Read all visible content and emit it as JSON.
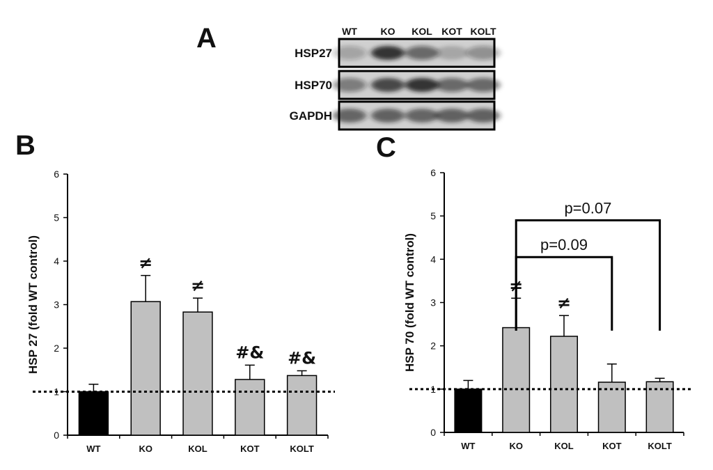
{
  "figure": {
    "panel_a": {
      "letter": "A",
      "lanes": [
        "WT",
        "KO",
        "KOL",
        "KOT",
        "KOLT"
      ],
      "blots": [
        {
          "label": "HSP27",
          "intensity": [
            0.25,
            0.85,
            0.55,
            0.2,
            0.35
          ]
        },
        {
          "label": "HSP70",
          "intensity": [
            0.45,
            0.75,
            0.85,
            0.55,
            0.55
          ]
        },
        {
          "label": "GAPDH",
          "intensity": [
            0.6,
            0.62,
            0.6,
            0.62,
            0.62
          ]
        }
      ],
      "colors": {
        "band": "#1a1a1a",
        "background": "#d0d0d0"
      }
    }
  },
  "chart_data": [
    {
      "type": "bar",
      "panel": "B",
      "title": "",
      "xlabel": "",
      "ylabel": "HSP 27 (fold WT control)",
      "ylim": [
        0,
        6
      ],
      "yticks": [
        "0",
        "1",
        "2",
        "3",
        "4",
        "5",
        "6"
      ],
      "categories": [
        "WT",
        "KO",
        "KOL",
        "KOT",
        "KOLT"
      ],
      "values": [
        1.0,
        3.07,
        2.83,
        1.28,
        1.37
      ],
      "errors": [
        0.17,
        0.6,
        0.32,
        0.33,
        0.11
      ],
      "annotations": [
        "",
        "≠",
        "≠",
        "#&",
        "#&"
      ],
      "bar_colors": [
        "#000000",
        "#c0c0c0",
        "#c0c0c0",
        "#c0c0c0",
        "#c0c0c0"
      ],
      "reference_line": 1,
      "grid": false,
      "brackets": []
    },
    {
      "type": "bar",
      "panel": "C",
      "title": "",
      "xlabel": "",
      "ylabel": "HSP 70 (fold WT control)",
      "ylim": [
        0,
        6
      ],
      "yticks": [
        "0",
        "1",
        "2",
        "3",
        "4",
        "5",
        "6"
      ],
      "categories": [
        "WT",
        "KO",
        "KOL",
        "KOT",
        "KOLT"
      ],
      "values": [
        1.0,
        2.42,
        2.22,
        1.16,
        1.17
      ],
      "errors": [
        0.2,
        0.68,
        0.48,
        0.42,
        0.08
      ],
      "annotations": [
        "",
        "≠",
        "≠",
        "",
        ""
      ],
      "bar_colors": [
        "#000000",
        "#c0c0c0",
        "#c0c0c0",
        "#c0c0c0",
        "#c0c0c0"
      ],
      "reference_line": 1,
      "grid": false,
      "brackets": [
        {
          "from": "KO",
          "to": "KOLT",
          "label": "p=0.07",
          "level": 4.9,
          "drop_to": 2.35
        },
        {
          "from": "KO",
          "to": "KOT",
          "label": "p=0.09",
          "level": 4.05,
          "drop_to": 2.35
        }
      ]
    }
  ]
}
